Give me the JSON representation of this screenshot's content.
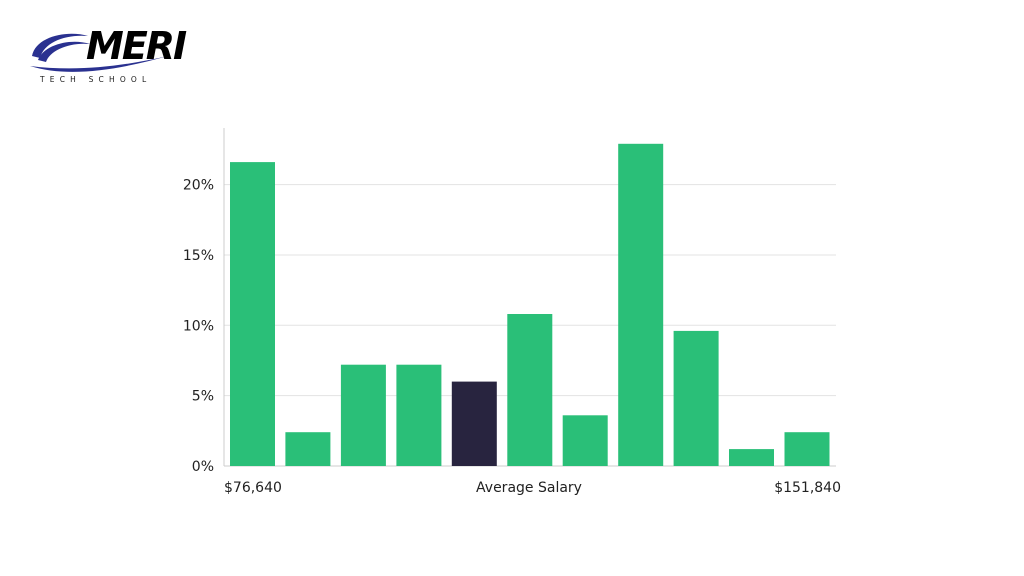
{
  "logo": {
    "name": "MERI",
    "subtitle": "TECH SCHOOL",
    "colors": {
      "wave": "#2a3190",
      "text": "#000000"
    }
  },
  "chart_data": {
    "type": "bar",
    "title": "",
    "xlabel": "Average Salary",
    "ylabel": "",
    "x_range_labels": {
      "min": "$76,640",
      "max": "$151,840"
    },
    "values": [
      21.6,
      2.4,
      7.2,
      7.2,
      6.0,
      10.8,
      3.6,
      22.9,
      9.6,
      1.2,
      2.4
    ],
    "highlight_index": 4,
    "ylim": [
      0,
      24
    ],
    "yticks": [
      0,
      5,
      10,
      15,
      20
    ],
    "ytick_labels": [
      "0%",
      "5%",
      "10%",
      "15%",
      "20%"
    ],
    "grid": true,
    "colors": {
      "bar": "#2abf78",
      "highlight": "#28243f",
      "grid": "#e3e3e3",
      "axis": "#cccccc"
    }
  }
}
